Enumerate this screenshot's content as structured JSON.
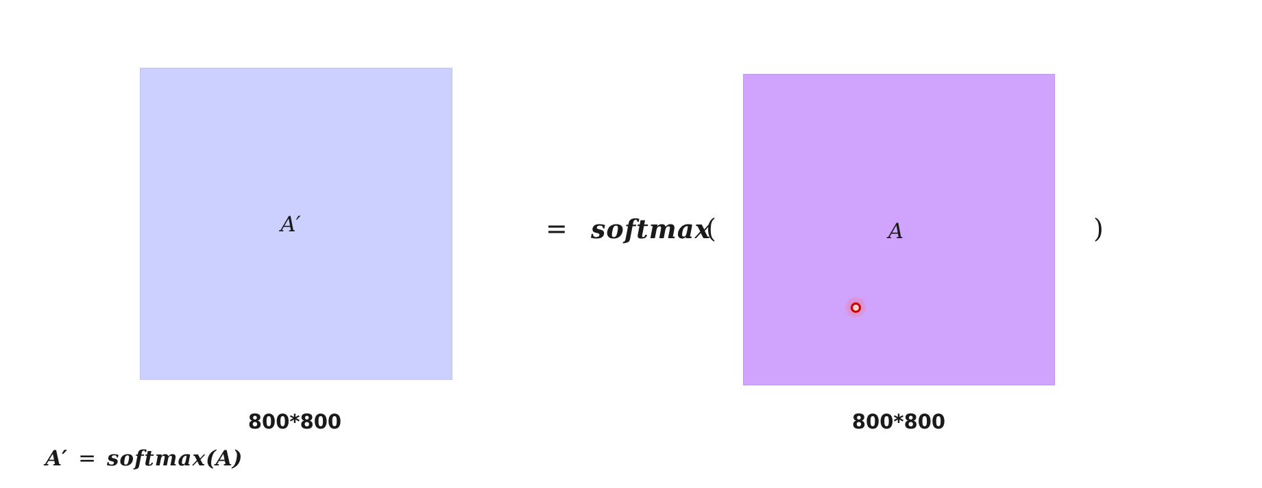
{
  "colors": {
    "matrix_a_prime_fill": "#ccd0fe",
    "matrix_a_fill": "#d0a3fd",
    "cursor": "#c80000"
  },
  "left_matrix": {
    "label": "A′",
    "dimension": "800*800"
  },
  "right_matrix": {
    "label": "A",
    "dimension": "800*800"
  },
  "equation": {
    "equals": "=",
    "func_name": "softmax",
    "open_paren": "(",
    "close_paren": ")"
  },
  "formula": {
    "lhs": "A′",
    "eq": "=",
    "func_name": "softmax",
    "arg": "(A)"
  }
}
